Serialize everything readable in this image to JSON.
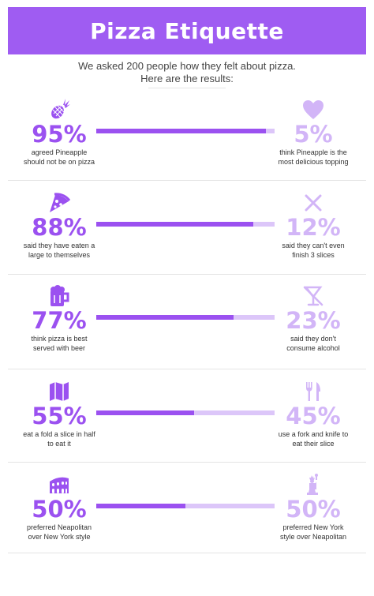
{
  "title": "Pizza Etiquette",
  "intro": {
    "line1": "We asked 200 people how they felt about pizza.",
    "line2": "Here are the results:"
  },
  "colors": {
    "accent": "#9b51f0",
    "accent_light": "#d2b5f7",
    "banner": "#9f5cf2"
  },
  "rows": [
    {
      "left": {
        "icon": "pineapple-icon",
        "percent": "95%",
        "line1": "agreed Pineapple",
        "line2": "should not be on pizza"
      },
      "right": {
        "icon": "heart-icon",
        "percent": "5%",
        "line1": "think Pineapple is the",
        "line2": "most delicious topping"
      },
      "fill": 0.95
    },
    {
      "left": {
        "icon": "pizza-slice-icon",
        "percent": "88%",
        "line1": "said they have eaten a",
        "line2": "large to themselves"
      },
      "right": {
        "icon": "cross-icon",
        "percent": "12%",
        "line1": "said they can't even",
        "line2": "finish 3 slices"
      },
      "fill": 0.88
    },
    {
      "left": {
        "icon": "beer-mug-icon",
        "percent": "77%",
        "line1": "think pizza is best",
        "line2": "served with beer"
      },
      "right": {
        "icon": "no-alcohol-glass-icon",
        "percent": "23%",
        "line1": "said they don't",
        "line2": "consume alcohol"
      },
      "fill": 0.77
    },
    {
      "left": {
        "icon": "folded-map-icon",
        "percent": "55%",
        "line1": "eat a fold a slice in half",
        "line2": "to eat it"
      },
      "right": {
        "icon": "fork-knife-icon",
        "percent": "45%",
        "line1": "use a fork and knife to",
        "line2": "eat their slice"
      },
      "fill": 0.55
    },
    {
      "left": {
        "icon": "colosseum-icon",
        "percent": "50%",
        "line1": "preferred Neapolitan",
        "line2": "over New York style"
      },
      "right": {
        "icon": "statue-of-liberty-icon",
        "percent": "50%",
        "line1": "preferred New York",
        "line2": "style over Neapolitan"
      },
      "fill": 0.5
    }
  ]
}
